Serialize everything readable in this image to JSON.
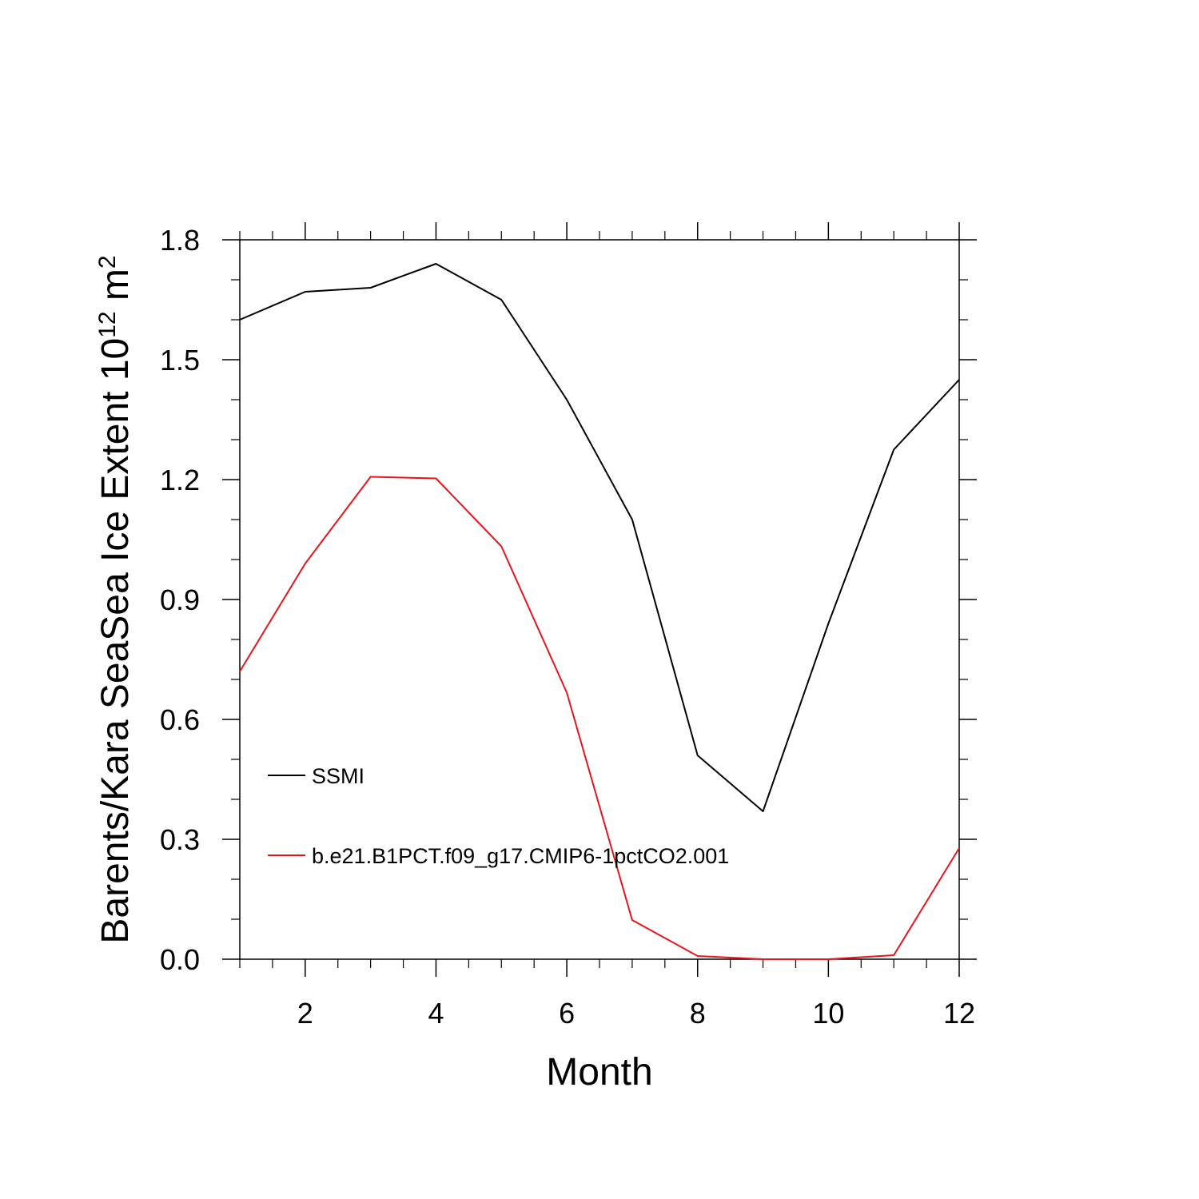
{
  "chart_data": {
    "type": "line",
    "title": "",
    "xlabel": "Month",
    "ylabel_main": "Barents/Kara SeaSea Ice Extent 10",
    "ylabel_sup": "12",
    "ylabel_unit": " m",
    "ylabel_unit_sup": "2",
    "xlim": [
      1,
      12
    ],
    "ylim": [
      0.0,
      1.8
    ],
    "x_ticks": [
      2,
      4,
      6,
      8,
      10,
      12
    ],
    "x_tick_labels": [
      "2",
      "4",
      "6",
      "8",
      "10",
      "12"
    ],
    "y_ticks": [
      0.0,
      0.3,
      0.6,
      0.9,
      1.2,
      1.5,
      1.8
    ],
    "y_tick_labels": [
      "0.0",
      "0.3",
      "0.6",
      "0.9",
      "1.2",
      "1.5",
      "1.8"
    ],
    "grid": false,
    "legend_position": "bottom-left",
    "x": [
      1,
      2,
      3,
      4,
      5,
      6,
      7,
      8,
      9,
      10,
      11,
      12
    ],
    "series": [
      {
        "name": "SSMI",
        "color": "#000000",
        "values": [
          1.6,
          1.67,
          1.68,
          1.74,
          1.65,
          1.4,
          1.1,
          0.51,
          0.37,
          0.84,
          1.275,
          1.45
        ]
      },
      {
        "name": "b.e21.B1PCT.f09_g17.CMIP6-1pctCO2.001",
        "color": "#e8141b",
        "values": [
          0.72,
          0.99,
          1.207,
          1.203,
          1.033,
          0.667,
          0.098,
          0.008,
          0.0,
          0.0,
          0.01,
          0.278
        ]
      }
    ]
  }
}
